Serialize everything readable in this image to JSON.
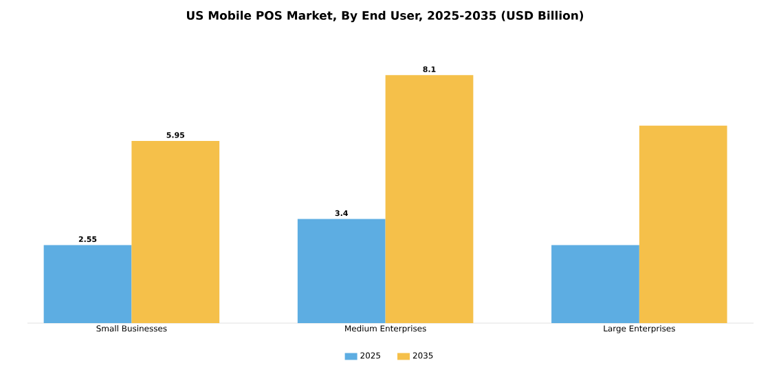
{
  "chart_data": {
    "type": "bar",
    "title": "US Mobile POS Market, By End User, 2025-2035 (USD Billion)",
    "categories": [
      "Small Businesses",
      "Medium Enterprises",
      "Large Enterprises"
    ],
    "series": [
      {
        "name": "2025",
        "color": "#5dade2",
        "values": [
          2.55,
          3.4,
          2.55
        ],
        "value_labels": [
          "2.55",
          "3.4",
          null
        ]
      },
      {
        "name": "2035",
        "color": "#f5c04a",
        "values": [
          5.95,
          8.1,
          6.45
        ],
        "value_labels": [
          "5.95",
          "8.1",
          null
        ]
      }
    ],
    "legend": "bottom"
  }
}
